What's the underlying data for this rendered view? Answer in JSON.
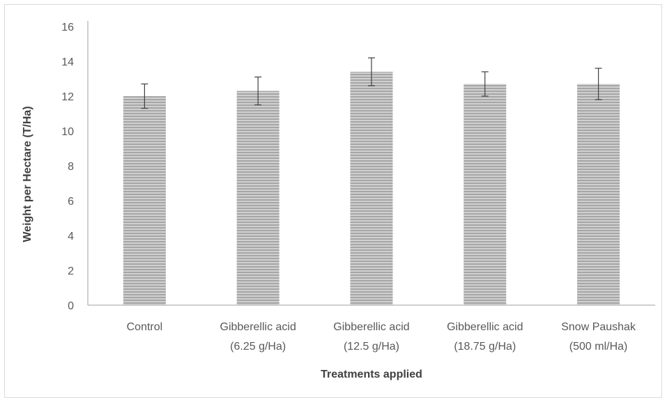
{
  "chart_data": {
    "type": "bar",
    "title": "",
    "xlabel": "Treatments applied",
    "ylabel": "Weight per Hectare (T/Ha)",
    "ylim": [
      0,
      16
    ],
    "yticks": [
      0,
      2,
      4,
      6,
      8,
      10,
      12,
      14,
      16
    ],
    "grid": false,
    "legend": "none",
    "categories": [
      [
        "Control"
      ],
      [
        "Gibberellic acid",
        "(6.25 g/Ha)"
      ],
      [
        "Gibberellic acid",
        "(12.5 g/Ha)"
      ],
      [
        "Gibberellic acid",
        "(18.75 g/Ha)"
      ],
      [
        "Snow Paushak",
        "(500 ml/Ha)"
      ]
    ],
    "values": [
      12.0,
      12.3,
      13.4,
      12.7,
      12.7
    ],
    "error_bars": [
      0.7,
      0.8,
      0.8,
      0.7,
      0.9
    ],
    "colors": {
      "bar_fill": "#d0d0d0",
      "bar_stripe": "#a6a6a6",
      "axis": "#bfbfbf",
      "error_bar": "#404040"
    }
  }
}
